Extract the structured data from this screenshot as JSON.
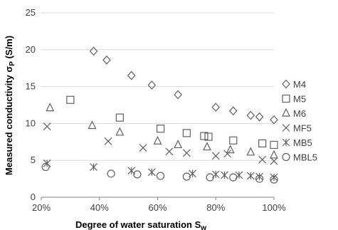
{
  "chart_data": {
    "type": "scatter",
    "xlabel": "Degree of water saturation S",
    "xlabel_sub": "w",
    "ylabel": "Measured conductivity σ",
    "ylabel_sub": "P",
    "ylabel_unit": " (S/m)",
    "xlim": [
      20,
      100
    ],
    "ylim": [
      0,
      25
    ],
    "x_ticks": [
      20,
      40,
      60,
      80,
      100
    ],
    "x_tick_labels": [
      "20%",
      "40%",
      "60%",
      "80%",
      "100%"
    ],
    "y_ticks": [
      0,
      5,
      10,
      15,
      20,
      25
    ],
    "y_tick_labels": [
      "0",
      "5",
      "10",
      "15",
      "20",
      "25"
    ],
    "grid": "horizontal",
    "legend_position": "right",
    "series": [
      {
        "name": "M4",
        "marker": "diamond",
        "points": [
          [
            38,
            19.8
          ],
          [
            42.5,
            18.6
          ],
          [
            51,
            16.5
          ],
          [
            58,
            15.2
          ],
          [
            67,
            13.9
          ],
          [
            80,
            12.2
          ],
          [
            86,
            11.7
          ],
          [
            92,
            11.1
          ],
          [
            95,
            10.9
          ],
          [
            100,
            10.5
          ]
        ]
      },
      {
        "name": "M5",
        "marker": "square",
        "points": [
          [
            30,
            13.2
          ],
          [
            47,
            10.8
          ],
          [
            61,
            9.3
          ],
          [
            70,
            8.7
          ],
          [
            76,
            8.3
          ],
          [
            77.5,
            8.2
          ],
          [
            86,
            7.7
          ],
          [
            96,
            7.3
          ],
          [
            100,
            7.1
          ]
        ]
      },
      {
        "name": "M6",
        "marker": "triangle",
        "points": [
          [
            23,
            12.1
          ],
          [
            37.5,
            9.7
          ],
          [
            47,
            8.8
          ],
          [
            60,
            7.6
          ],
          [
            67,
            7.1
          ],
          [
            77,
            6.8
          ],
          [
            85,
            6.4
          ],
          [
            92,
            6.1
          ],
          [
            100,
            5.7
          ]
        ]
      },
      {
        "name": "MF5",
        "marker": "x",
        "points": [
          [
            22,
            9.6
          ],
          [
            43,
            7.6
          ],
          [
            55,
            6.7
          ],
          [
            64,
            6.2
          ],
          [
            70,
            6.0
          ],
          [
            80,
            5.6
          ],
          [
            84,
            5.9
          ],
          [
            96,
            5.1
          ],
          [
            100,
            4.9
          ]
        ]
      },
      {
        "name": "MB5",
        "marker": "asterisk",
        "points": [
          [
            22,
            4.6
          ],
          [
            38,
            4.1
          ],
          [
            51,
            3.6
          ],
          [
            58,
            3.4
          ],
          [
            72,
            3.2
          ],
          [
            80,
            3.1
          ],
          [
            83,
            3.0
          ],
          [
            88,
            3.0
          ],
          [
            92,
            2.9
          ],
          [
            95,
            2.8
          ],
          [
            100,
            2.7
          ]
        ]
      },
      {
        "name": "MBL5",
        "marker": "circle",
        "points": [
          [
            21.5,
            4.1
          ],
          [
            44,
            3.2
          ],
          [
            53,
            3.1
          ],
          [
            61,
            2.9
          ],
          [
            70,
            2.8
          ],
          [
            78,
            2.7
          ],
          [
            86,
            2.7
          ],
          [
            95,
            2.5
          ],
          [
            100,
            2.4
          ]
        ]
      }
    ]
  }
}
